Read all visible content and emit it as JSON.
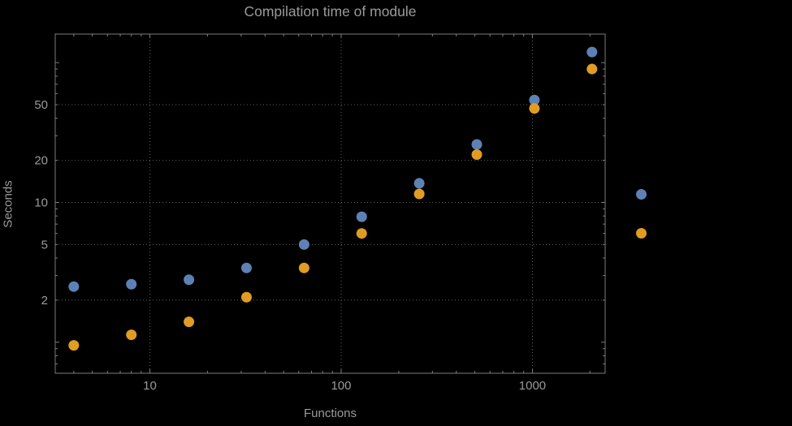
{
  "chart_data": {
    "type": "scatter",
    "title": "Compilation time of module",
    "xlabel": "Functions",
    "ylabel": "Seconds",
    "xscale": "log",
    "yscale": "log",
    "xlim": [
      3.2,
      2400
    ],
    "ylim": [
      0.6,
      160
    ],
    "xticks": [
      10,
      100,
      1000
    ],
    "yticks": [
      2,
      5,
      10,
      20,
      50
    ],
    "grid": "dotted",
    "legend_position": "right",
    "x": [
      4,
      8,
      16,
      32,
      64,
      128,
      256,
      512,
      1024,
      2048
    ],
    "series": [
      {
        "color": "#5e81b5",
        "values": [
          2.5,
          2.6,
          2.8,
          3.4,
          5.0,
          7.9,
          13.7,
          26,
          54,
          119
        ]
      },
      {
        "color": "#e19c24",
        "values": [
          0.95,
          1.13,
          1.4,
          2.1,
          3.4,
          6.0,
          11.5,
          22,
          47,
          90
        ]
      }
    ],
    "legend_markers": [
      {
        "color": "#5e81b5"
      },
      {
        "color": "#e19c24"
      }
    ]
  },
  "colors": {
    "background": "#000000",
    "text": "#9a9a9a",
    "frame": "#7d7d7d",
    "grid": "#5f5f5f"
  }
}
